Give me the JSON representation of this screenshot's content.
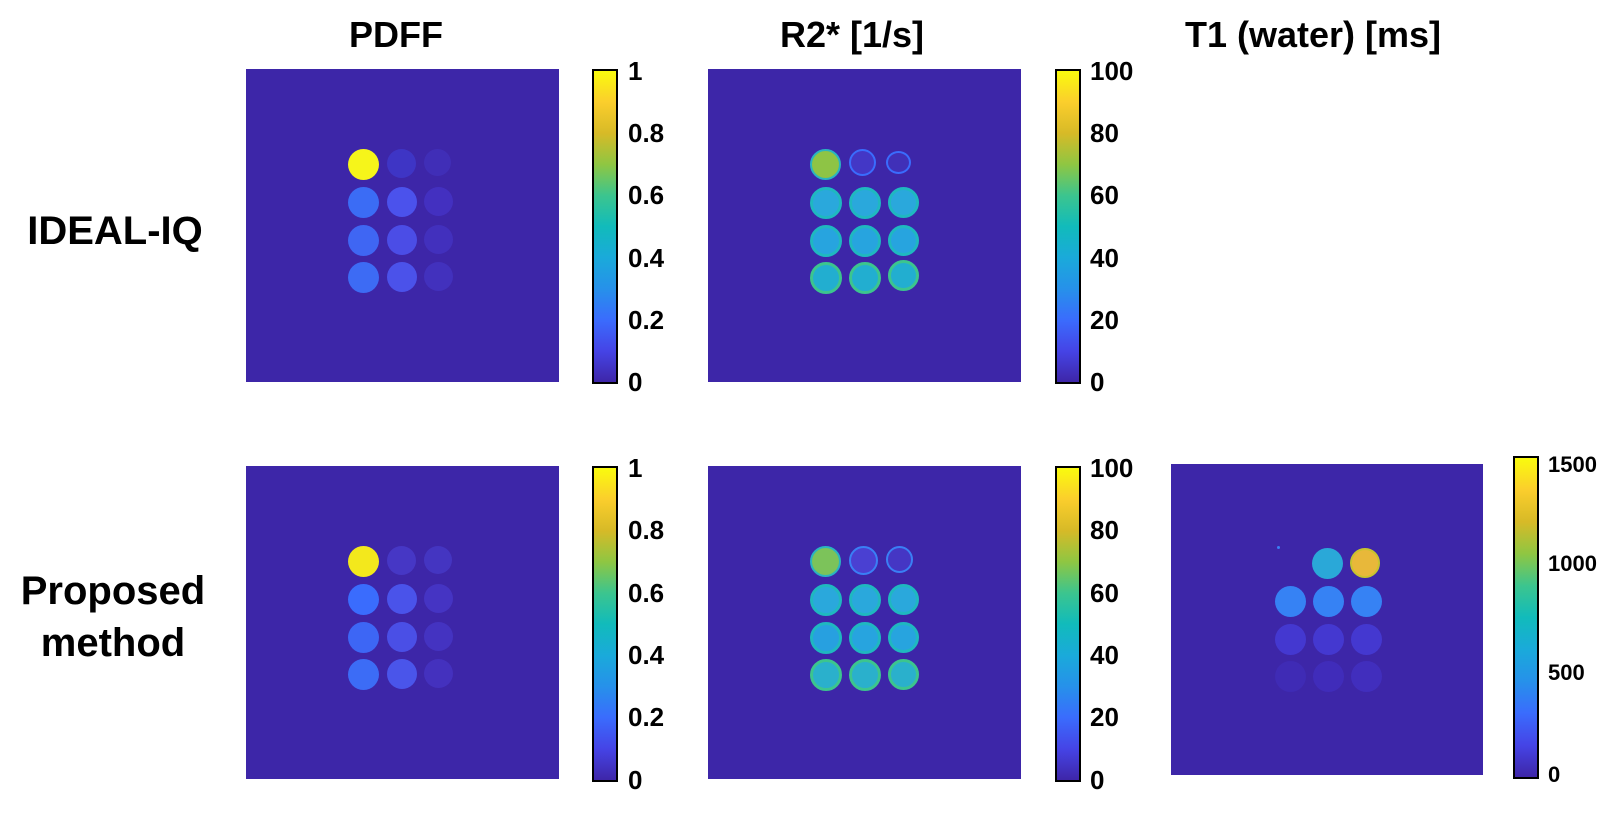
{
  "columns": {
    "pdff": "PDFF",
    "r2star": "R2* [1/s]",
    "t1": "T1 (water) [ms]"
  },
  "rows": {
    "ideal": "IDEAL-IQ",
    "proposed_line1": "Proposed",
    "proposed_line2": "method"
  },
  "colorbars": {
    "pdff_ticks": [
      "1",
      "0.8",
      "0.6",
      "0.4",
      "0.2",
      "0"
    ],
    "r2star_ticks": [
      "100",
      "80",
      "60",
      "40",
      "20",
      "0"
    ],
    "t1_ticks": [
      "1500",
      "1000",
      "500",
      "0"
    ]
  },
  "colors": {
    "background_map": "#3d26a8",
    "colormap": "parula"
  }
}
